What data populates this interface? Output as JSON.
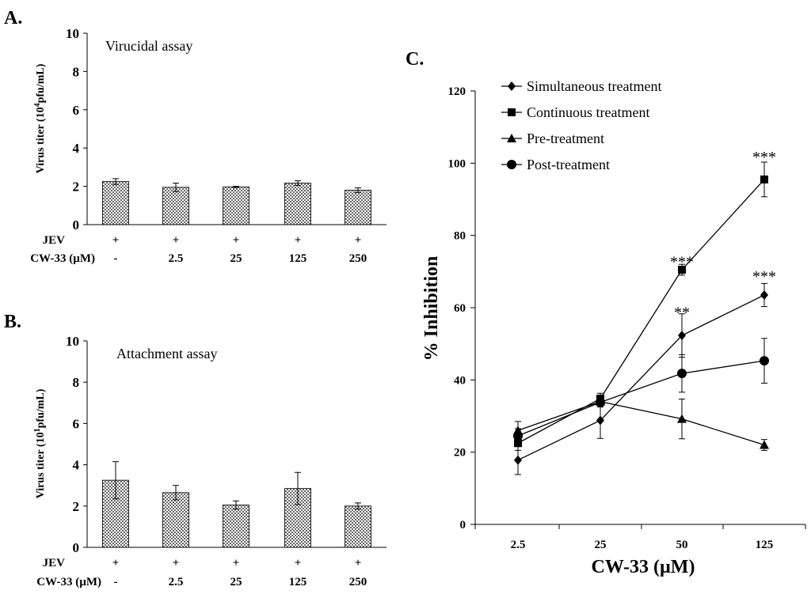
{
  "chart_data": [
    {
      "panel": "A.",
      "type": "bar",
      "title": "Virucidal assay",
      "ylabel_prefix": "Virus titer (10",
      "ylabel_sup": "4",
      "ylabel_suffix": "pfu/mL)",
      "ylim": [
        0,
        10
      ],
      "yticks": [
        "0",
        "2",
        "4",
        "6",
        "8",
        "10"
      ],
      "values": [
        2.25,
        1.95,
        1.97,
        2.17,
        1.8
      ],
      "errors": [
        0.15,
        0.22,
        0.03,
        0.12,
        0.12
      ],
      "row_labels": [
        "JEV",
        "CW-33 (µM)"
      ],
      "jev": [
        "+",
        "+",
        "+",
        "+",
        "+"
      ],
      "cw33": [
        "-",
        "2.5",
        "25",
        "125",
        "250"
      ]
    },
    {
      "panel": "B.",
      "type": "bar",
      "title": "Attachment assay",
      "ylabel_prefix": "Virus titer (10",
      "ylabel_sup": "1",
      "ylabel_suffix": "pfu/mL)",
      "ylim": [
        0,
        10
      ],
      "yticks": [
        "0",
        "2",
        "4",
        "6",
        "8",
        "10"
      ],
      "values": [
        3.25,
        2.65,
        2.05,
        2.85,
        2.0
      ],
      "errors": [
        0.9,
        0.35,
        0.2,
        0.78,
        0.15
      ],
      "row_labels": [
        "JEV",
        "CW-33 (µM)"
      ],
      "jev": [
        "+",
        "+",
        "+",
        "+",
        "+"
      ],
      "cw33": [
        "-",
        "2.5",
        "25",
        "125",
        "250"
      ]
    },
    {
      "panel": "C.",
      "type": "line",
      "xlabel": "CW-33 (µM)",
      "ylabel": "% Inhibition",
      "categories": [
        "2.5",
        "25",
        "50",
        "125"
      ],
      "ylim": [
        0,
        120
      ],
      "yticks": [
        "0",
        "20",
        "40",
        "60",
        "80",
        "100",
        "120"
      ],
      "series": [
        {
          "name": "Simultaneous treatment",
          "marker": "diamond",
          "values": [
            17.8,
            28.8,
            52.3,
            63.5
          ],
          "errors": [
            4.0,
            5.0,
            6.0,
            3.2
          ]
        },
        {
          "name": "Continuous treatment",
          "marker": "square",
          "values": [
            22.5,
            34.8,
            70.5,
            95.5
          ],
          "errors": [
            2.0,
            1.5,
            1.5,
            4.8
          ]
        },
        {
          "name": "Pre-treatment",
          "marker": "triangle",
          "values": [
            26.0,
            34.0,
            29.2,
            22.0
          ],
          "errors": [
            2.5,
            1.5,
            5.5,
            1.5
          ]
        },
        {
          "name": "Post-treatment",
          "marker": "circle",
          "values": [
            24.5,
            33.8,
            41.8,
            45.3
          ],
          "errors": [
            2.0,
            1.0,
            5.2,
            6.2
          ]
        }
      ],
      "annotations": [
        {
          "text": "***",
          "cat": 3,
          "y": 102
        },
        {
          "text": "***",
          "cat": 2,
          "y": 73
        },
        {
          "text": "***",
          "cat": 3,
          "y": 69
        },
        {
          "text": "**",
          "cat": 2,
          "y": 59
        }
      ]
    }
  ]
}
